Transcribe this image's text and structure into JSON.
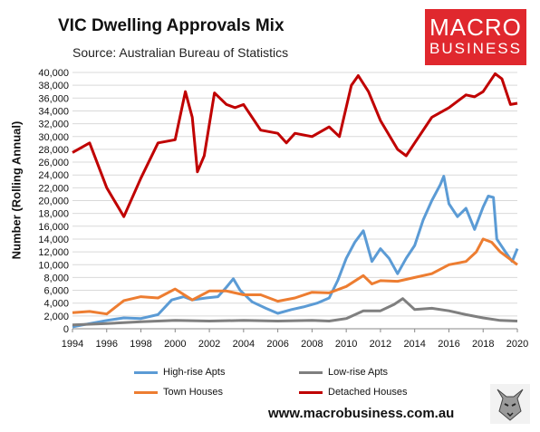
{
  "title": "VIC Dwelling Approvals Mix",
  "subtitle": "Source: Australian Bureau of Statistics",
  "logo": {
    "line1": "MACRO",
    "line2": "BUSINESS",
    "color": "#e0282e"
  },
  "website": "www.macrobusiness.com.au",
  "wolf_icon": "wolf-icon",
  "chart_data": {
    "type": "line",
    "title": "VIC Dwelling Approvals Mix",
    "ylabel": "Number (Rolling Annual)",
    "xlabel": "",
    "xlim": [
      1994,
      2020
    ],
    "ylim": [
      0,
      40000
    ],
    "x_ticks": [
      1994,
      1996,
      1998,
      2000,
      2002,
      2004,
      2006,
      2008,
      2010,
      2012,
      2014,
      2016,
      2018,
      2020
    ],
    "y_ticks": [
      0,
      2000,
      4000,
      6000,
      8000,
      10000,
      12000,
      14000,
      16000,
      18000,
      20000,
      22000,
      24000,
      26000,
      28000,
      30000,
      32000,
      34000,
      36000,
      38000,
      40000
    ],
    "y_tick_labels": [
      "0",
      "2,000",
      "4,000",
      "6,000",
      "8,000",
      "10,000",
      "12,000",
      "14,000",
      "16,000",
      "18,000",
      "20,000",
      "22,000",
      "24,000",
      "26,000",
      "28,000",
      "30,000",
      "32,000",
      "34,000",
      "36,000",
      "38,000",
      "40,000"
    ],
    "grid": "horizontal",
    "legend": "bottom",
    "series": [
      {
        "name": "High-rise Apts",
        "color": "#5b9bd5",
        "points": [
          [
            1994,
            300
          ],
          [
            1995,
            800
          ],
          [
            1996,
            1300
          ],
          [
            1997,
            1700
          ],
          [
            1998,
            1600
          ],
          [
            1999,
            2200
          ],
          [
            1999.8,
            4500
          ],
          [
            2000.5,
            5000
          ],
          [
            2001,
            4500
          ],
          [
            2001.8,
            4800
          ],
          [
            2002.5,
            5000
          ],
          [
            2003,
            6500
          ],
          [
            2003.4,
            7800
          ],
          [
            2003.8,
            6000
          ],
          [
            2004.5,
            4200
          ],
          [
            2005.3,
            3200
          ],
          [
            2006,
            2400
          ],
          [
            2006.8,
            3000
          ],
          [
            2007.5,
            3400
          ],
          [
            2008.3,
            4000
          ],
          [
            2009,
            4800
          ],
          [
            2009.5,
            7500
          ],
          [
            2010,
            11000
          ],
          [
            2010.5,
            13500
          ],
          [
            2011,
            15300
          ],
          [
            2011.5,
            10500
          ],
          [
            2012,
            12500
          ],
          [
            2012.5,
            11000
          ],
          [
            2013,
            8600
          ],
          [
            2013.5,
            11000
          ],
          [
            2014,
            13000
          ],
          [
            2014.5,
            17000
          ],
          [
            2015,
            20000
          ],
          [
            2015.5,
            22500
          ],
          [
            2015.7,
            23800
          ],
          [
            2016,
            19500
          ],
          [
            2016.5,
            17500
          ],
          [
            2017,
            18800
          ],
          [
            2017.5,
            15500
          ],
          [
            2018,
            19000
          ],
          [
            2018.3,
            20700
          ],
          [
            2018.6,
            20500
          ],
          [
            2018.8,
            14000
          ],
          [
            2019.3,
            12000
          ],
          [
            2019.7,
            10500
          ],
          [
            2020,
            12500
          ]
        ]
      },
      {
        "name": "Low-rise Apts",
        "color": "#7f7f7f",
        "points": [
          [
            1994,
            600
          ],
          [
            1996,
            800
          ],
          [
            1998,
            1100
          ],
          [
            2000,
            1300
          ],
          [
            2002,
            1200
          ],
          [
            2004,
            1300
          ],
          [
            2006,
            1200
          ],
          [
            2008,
            1300
          ],
          [
            2009,
            1200
          ],
          [
            2010,
            1600
          ],
          [
            2011,
            2800
          ],
          [
            2012,
            2800
          ],
          [
            2012.8,
            3800
          ],
          [
            2013.3,
            4700
          ],
          [
            2014,
            3000
          ],
          [
            2015,
            3200
          ],
          [
            2016,
            2800
          ],
          [
            2017,
            2200
          ],
          [
            2018,
            1700
          ],
          [
            2019,
            1300
          ],
          [
            2020,
            1200
          ]
        ]
      },
      {
        "name": "Town Houses",
        "color": "#ed7d31",
        "points": [
          [
            1994,
            2500
          ],
          [
            1995,
            2700
          ],
          [
            1996,
            2300
          ],
          [
            1997,
            4400
          ],
          [
            1998,
            5000
          ],
          [
            1999,
            4800
          ],
          [
            2000,
            6200
          ],
          [
            2001,
            4500
          ],
          [
            2002,
            5900
          ],
          [
            2003,
            5900
          ],
          [
            2004,
            5300
          ],
          [
            2005,
            5300
          ],
          [
            2006,
            4300
          ],
          [
            2007,
            4800
          ],
          [
            2008,
            5700
          ],
          [
            2009,
            5600
          ],
          [
            2010,
            6600
          ],
          [
            2011,
            8300
          ],
          [
            2011.5,
            7000
          ],
          [
            2012,
            7500
          ],
          [
            2013,
            7400
          ],
          [
            2014,
            8000
          ],
          [
            2015,
            8600
          ],
          [
            2016,
            10000
          ],
          [
            2017,
            10500
          ],
          [
            2017.6,
            12000
          ],
          [
            2018,
            14000
          ],
          [
            2018.5,
            13500
          ],
          [
            2019,
            12000
          ],
          [
            2019.5,
            11000
          ],
          [
            2020,
            10000
          ]
        ]
      },
      {
        "name": "Detached Houses",
        "color": "#c00000",
        "points": [
          [
            1994,
            27500
          ],
          [
            1995,
            29000
          ],
          [
            1996,
            22000
          ],
          [
            1997,
            17500
          ],
          [
            1998,
            23500
          ],
          [
            1999,
            29000
          ],
          [
            2000,
            29500
          ],
          [
            2000.6,
            37000
          ],
          [
            2001,
            33000
          ],
          [
            2001.3,
            24500
          ],
          [
            2001.7,
            27000
          ],
          [
            2002.3,
            36800
          ],
          [
            2003,
            35000
          ],
          [
            2003.5,
            34500
          ],
          [
            2004,
            35000
          ],
          [
            2005,
            31000
          ],
          [
            2006,
            30500
          ],
          [
            2006.5,
            29000
          ],
          [
            2007,
            30500
          ],
          [
            2008,
            30000
          ],
          [
            2009,
            31500
          ],
          [
            2009.6,
            30000
          ],
          [
            2010.3,
            38000
          ],
          [
            2010.7,
            39500
          ],
          [
            2011.3,
            37000
          ],
          [
            2012,
            32500
          ],
          [
            2013,
            28000
          ],
          [
            2013.5,
            27000
          ],
          [
            2014,
            29000
          ],
          [
            2015,
            33000
          ],
          [
            2016,
            34500
          ],
          [
            2017,
            36500
          ],
          [
            2017.5,
            36200
          ],
          [
            2018,
            37000
          ],
          [
            2018.7,
            39800
          ],
          [
            2019.1,
            39000
          ],
          [
            2019.6,
            35000
          ],
          [
            2020,
            35200
          ]
        ]
      }
    ]
  }
}
